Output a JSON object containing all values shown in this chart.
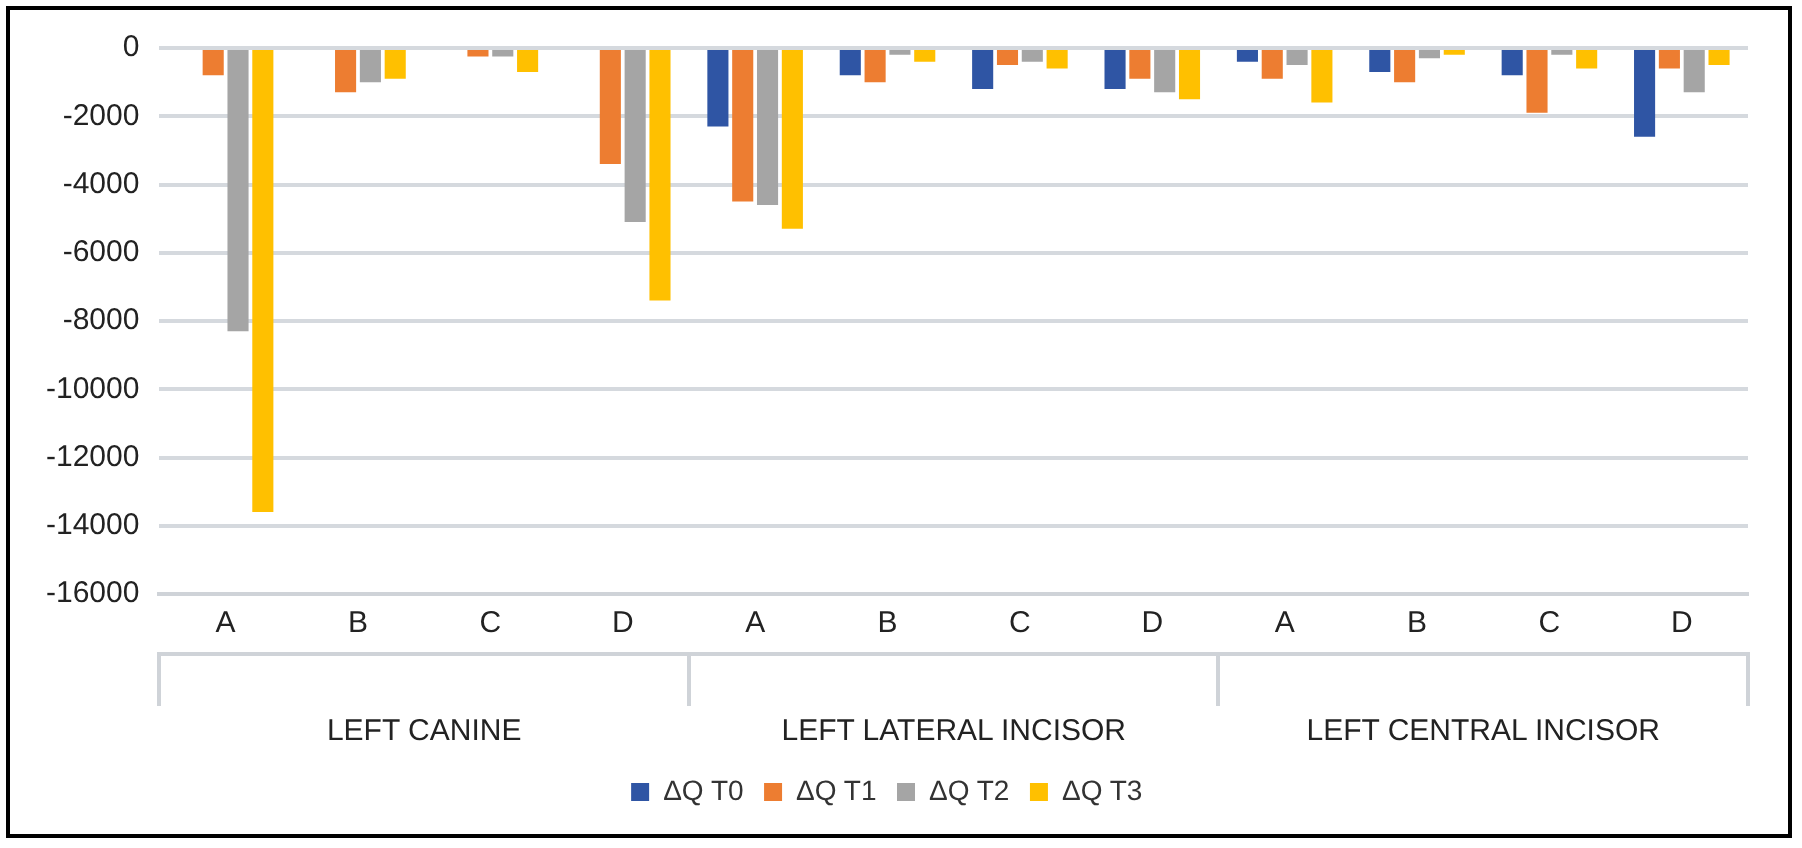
{
  "chart_data": {
    "type": "bar",
    "categories": [
      "A",
      "B",
      "C",
      "D",
      "A",
      "B",
      "C",
      "D",
      "A",
      "B",
      "C",
      "D"
    ],
    "annotations": [
      "LEFT CANINE",
      "LEFT LATERAL INCISOR",
      "LEFT CENTRAL INCISOR"
    ],
    "series": [
      {
        "name": "ΔQ T0",
        "color": "#2f55a4",
        "values": [
          0,
          0,
          0,
          0,
          -2300,
          -800,
          -1200,
          -1200,
          -400,
          -700,
          -800,
          -2600
        ]
      },
      {
        "name": "ΔQ T1",
        "color": "#ed7d31",
        "values": [
          -800,
          -1300,
          -250,
          -3400,
          -4500,
          -1000,
          -500,
          -900,
          -900,
          -1000,
          -1900,
          -600
        ]
      },
      {
        "name": "ΔQ T2",
        "color": "#a5a5a5",
        "values": [
          -8300,
          -1000,
          -250,
          -5100,
          -4600,
          -200,
          -400,
          -1300,
          -500,
          -300,
          -200,
          -1300
        ]
      },
      {
        "name": "ΔQ T3",
        "color": "#ffc000",
        "values": [
          -13600,
          -900,
          -700,
          -7400,
          -5300,
          -400,
          -600,
          -1500,
          -1600,
          -200,
          -600,
          -500
        ]
      }
    ],
    "ylim": [
      -16000,
      0
    ],
    "yticks": [
      0,
      -2000,
      -4000,
      -6000,
      -8000,
      -10000,
      -12000,
      -14000,
      -16000
    ],
    "grid": "y",
    "legend": "bottom"
  }
}
